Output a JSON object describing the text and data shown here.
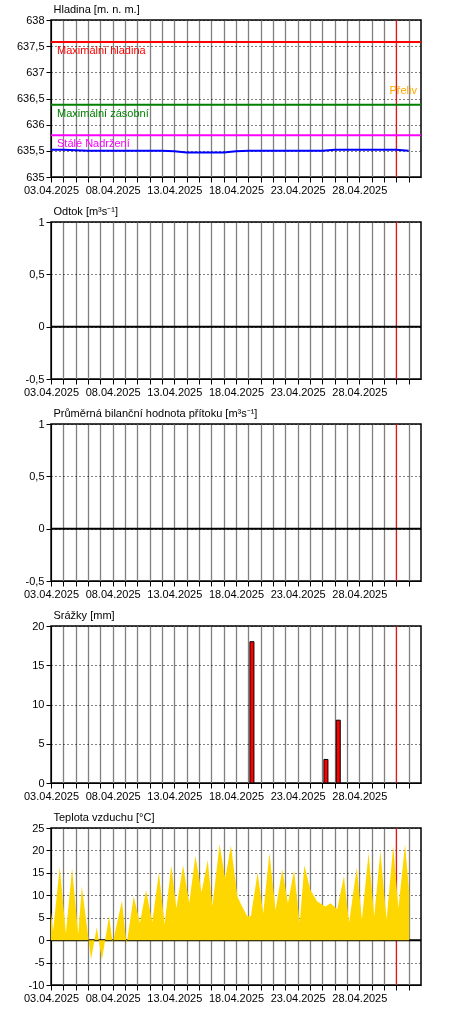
{
  "chart_data": [
    {
      "type": "line",
      "ylabel": "Hladina [m. n. m.]",
      "color": "#0000ff",
      "grid": true,
      "x": [
        "2025-04-03",
        "2025-04-04",
        "2025-04-05",
        "2025-04-06",
        "2025-04-07",
        "2025-04-08",
        "2025-04-09",
        "2025-04-10",
        "2025-04-11",
        "2025-04-12",
        "2025-04-13",
        "2025-04-14",
        "2025-04-15",
        "2025-04-16",
        "2025-04-17",
        "2025-04-18",
        "2025-04-19",
        "2025-04-20",
        "2025-04-21",
        "2025-04-22",
        "2025-04-23",
        "2025-04-24",
        "2025-04-25",
        "2025-04-26",
        "2025-04-27",
        "2025-04-28",
        "2025-04-29",
        "2025-04-30",
        "2025-05-01",
        "2025-05-02"
      ],
      "values": [
        635.52,
        635.52,
        635.51,
        635.5,
        635.5,
        635.5,
        635.5,
        635.5,
        635.5,
        635.5,
        635.49,
        635.47,
        635.47,
        635.47,
        635.47,
        635.49,
        635.5,
        635.5,
        635.5,
        635.5,
        635.5,
        635.5,
        635.5,
        635.52,
        635.52,
        635.52,
        635.52,
        635.52,
        635.52,
        635.5
      ],
      "xlim": [
        "2025-04-03",
        "2025-05-03"
      ],
      "xticks": [
        {
          "value": "2025-04-03",
          "label": "03.04.2025"
        },
        {
          "value": "2025-04-04",
          "label": null
        },
        {
          "value": "2025-04-05",
          "label": null
        },
        {
          "value": "2025-04-06",
          "label": null
        },
        {
          "value": "2025-04-07",
          "label": null
        },
        {
          "value": "2025-04-08",
          "label": "08.04.2025"
        },
        {
          "value": "2025-04-09",
          "label": null
        },
        {
          "value": "2025-04-10",
          "label": null
        },
        {
          "value": "2025-04-11",
          "label": null
        },
        {
          "value": "2025-04-12",
          "label": null
        },
        {
          "value": "2025-04-13",
          "label": "13.04.2025"
        },
        {
          "value": "2025-04-14",
          "label": null
        },
        {
          "value": "2025-04-15",
          "label": null
        },
        {
          "value": "2025-04-16",
          "label": null
        },
        {
          "value": "2025-04-17",
          "label": null
        },
        {
          "value": "2025-04-18",
          "label": "18.04.2025"
        },
        {
          "value": "2025-04-19",
          "label": null
        },
        {
          "value": "2025-04-20",
          "label": null
        },
        {
          "value": "2025-04-21",
          "label": null
        },
        {
          "value": "2025-04-22",
          "label": null
        },
        {
          "value": "2025-04-23",
          "label": "23.04.2025"
        },
        {
          "value": "2025-04-24",
          "label": null
        },
        {
          "value": "2025-04-25",
          "label": null
        },
        {
          "value": "2025-04-26",
          "label": null
        },
        {
          "value": "2025-04-27",
          "label": null
        },
        {
          "value": "2025-04-28",
          "label": "28.04.2025"
        },
        {
          "value": "2025-04-29",
          "label": null
        },
        {
          "value": "2025-04-30",
          "label": null
        },
        {
          "value": "2025-05-01",
          "label": null
        },
        {
          "value": "2025-05-02",
          "label": null
        }
      ],
      "ylim": [
        635,
        638
      ],
      "yticks": [
        635,
        {
          "value": 635.5,
          "label": "635,5"
        },
        636,
        {
          "value": 636.5,
          "label": "636,5"
        },
        637,
        {
          "value": 637.5,
          "label": "637,5"
        },
        638
      ],
      "ref_lines": [
        {
          "axis": "y",
          "value": 637.58,
          "label": "Maximální hladina",
          "color": "#ff0000"
        },
        {
          "axis": "y",
          "value": 636.38,
          "label": "Maximální zásobní",
          "color": "#008000"
        },
        {
          "axis": "y",
          "value": 635.8,
          "label": "Stálé Nadržení",
          "color": "#ff00ff"
        },
        {
          "axis": "x",
          "value": "2025-05-01",
          "color": "#ff0000"
        }
      ],
      "annotations": [
        "Přeliv"
      ]
    },
    {
      "type": "line",
      "ylabel": "Odtok [m³s⁻¹]",
      "grid": true,
      "xlim": [
        "2025-04-03",
        "2025-05-03"
      ],
      "xticks": [
        {
          "value": "2025-04-03",
          "label": "03.04.2025"
        },
        {
          "value": "2025-04-04",
          "label": null
        },
        {
          "value": "2025-04-05",
          "label": null
        },
        {
          "value": "2025-04-06",
          "label": null
        },
        {
          "value": "2025-04-07",
          "label": null
        },
        {
          "value": "2025-04-08",
          "label": "08.04.2025"
        },
        {
          "value": "2025-04-09",
          "label": null
        },
        {
          "value": "2025-04-10",
          "label": null
        },
        {
          "value": "2025-04-11",
          "label": null
        },
        {
          "value": "2025-04-12",
          "label": null
        },
        {
          "value": "2025-04-13",
          "label": "13.04.2025"
        },
        {
          "value": "2025-04-14",
          "label": null
        },
        {
          "value": "2025-04-15",
          "label": null
        },
        {
          "value": "2025-04-16",
          "label": null
        },
        {
          "value": "2025-04-17",
          "label": null
        },
        {
          "value": "2025-04-18",
          "label": "18.04.2025"
        },
        {
          "value": "2025-04-19",
          "label": null
        },
        {
          "value": "2025-04-20",
          "label": null
        },
        {
          "value": "2025-04-21",
          "label": null
        },
        {
          "value": "2025-04-22",
          "label": null
        },
        {
          "value": "2025-04-23",
          "label": "23.04.2025"
        },
        {
          "value": "2025-04-24",
          "label": null
        },
        {
          "value": "2025-04-25",
          "label": null
        },
        {
          "value": "2025-04-26",
          "label": null
        },
        {
          "value": "2025-04-27",
          "label": null
        },
        {
          "value": "2025-04-28",
          "label": "28.04.2025"
        },
        {
          "value": "2025-04-29",
          "label": null
        },
        {
          "value": "2025-04-30",
          "label": null
        },
        {
          "value": "2025-05-01",
          "label": null
        },
        {
          "value": "2025-05-02",
          "label": null
        }
      ],
      "ylim": [
        -0.5,
        1
      ],
      "yticks": [
        {
          "value": -0.5,
          "label": "-0,5"
        },
        0,
        {
          "value": 0.5,
          "label": "0,5"
        },
        1
      ],
      "ref_lines": [
        {
          "axis": "y",
          "value": 0,
          "color": "#000000"
        },
        {
          "axis": "x",
          "value": "2025-05-01",
          "color": "#ff0000"
        }
      ]
    },
    {
      "type": "line",
      "ylabel": "Průměrná bilanční hodnota přítoku   [m³s⁻¹]",
      "grid": true,
      "xlim": [
        "2025-04-03",
        "2025-05-03"
      ],
      "xticks": [
        {
          "value": "2025-04-03",
          "label": "03.04.2025"
        },
        {
          "value": "2025-04-04",
          "label": null
        },
        {
          "value": "2025-04-05",
          "label": null
        },
        {
          "value": "2025-04-06",
          "label": null
        },
        {
          "value": "2025-04-07",
          "label": null
        },
        {
          "value": "2025-04-08",
          "label": "08.04.2025"
        },
        {
          "value": "2025-04-09",
          "label": null
        },
        {
          "value": "2025-04-10",
          "label": null
        },
        {
          "value": "2025-04-11",
          "label": null
        },
        {
          "value": "2025-04-12",
          "label": null
        },
        {
          "value": "2025-04-13",
          "label": "13.04.2025"
        },
        {
          "value": "2025-04-14",
          "label": null
        },
        {
          "value": "2025-04-15",
          "label": null
        },
        {
          "value": "2025-04-16",
          "label": null
        },
        {
          "value": "2025-04-17",
          "label": null
        },
        {
          "value": "2025-04-18",
          "label": "18.04.2025"
        },
        {
          "value": "2025-04-19",
          "label": null
        },
        {
          "value": "2025-04-20",
          "label": null
        },
        {
          "value": "2025-04-21",
          "label": null
        },
        {
          "value": "2025-04-22",
          "label": null
        },
        {
          "value": "2025-04-23",
          "label": "23.04.2025"
        },
        {
          "value": "2025-04-24",
          "label": null
        },
        {
          "value": "2025-04-25",
          "label": null
        },
        {
          "value": "2025-04-26",
          "label": null
        },
        {
          "value": "2025-04-27",
          "label": null
        },
        {
          "value": "2025-04-28",
          "label": "28.04.2025"
        },
        {
          "value": "2025-04-29",
          "label": null
        },
        {
          "value": "2025-04-30",
          "label": null
        },
        {
          "value": "2025-05-01",
          "label": null
        },
        {
          "value": "2025-05-02",
          "label": null
        }
      ],
      "ylim": [
        -0.5,
        1
      ],
      "yticks": [
        {
          "value": -0.5,
          "label": "-0,5"
        },
        0,
        {
          "value": 0.5,
          "label": "0,5"
        },
        1
      ],
      "ref_lines": [
        {
          "axis": "y",
          "value": 0,
          "color": "#000000"
        },
        {
          "axis": "x",
          "value": "2025-05-01",
          "color": "#ff0000"
        }
      ]
    },
    {
      "type": "bar",
      "ylabel": "Srážky [mm]",
      "color": "#ff0000",
      "grid": true,
      "x": [
        "2025-04-19T07:00",
        "2025-04-25T07:00",
        "2025-04-26T07:00"
      ],
      "values": [
        18,
        3,
        8
      ],
      "xlim": [
        "2025-04-03",
        "2025-05-03"
      ],
      "xticks": [
        {
          "value": "2025-04-03",
          "label": "03.04.2025"
        },
        {
          "value": "2025-04-04",
          "label": null
        },
        {
          "value": "2025-04-05",
          "label": null
        },
        {
          "value": "2025-04-06",
          "label": null
        },
        {
          "value": "2025-04-07",
          "label": null
        },
        {
          "value": "2025-04-08",
          "label": "08.04.2025"
        },
        {
          "value": "2025-04-09",
          "label": null
        },
        {
          "value": "2025-04-10",
          "label": null
        },
        {
          "value": "2025-04-11",
          "label": null
        },
        {
          "value": "2025-04-12",
          "label": null
        },
        {
          "value": "2025-04-13",
          "label": "13.04.2025"
        },
        {
          "value": "2025-04-14",
          "label": null
        },
        {
          "value": "2025-04-15",
          "label": null
        },
        {
          "value": "2025-04-16",
          "label": null
        },
        {
          "value": "2025-04-17",
          "label": null
        },
        {
          "value": "2025-04-18",
          "label": "18.04.2025"
        },
        {
          "value": "2025-04-19",
          "label": null
        },
        {
          "value": "2025-04-20",
          "label": null
        },
        {
          "value": "2025-04-21",
          "label": null
        },
        {
          "value": "2025-04-22",
          "label": null
        },
        {
          "value": "2025-04-23",
          "label": "23.04.2025"
        },
        {
          "value": "2025-04-24",
          "label": null
        },
        {
          "value": "2025-04-25",
          "label": null
        },
        {
          "value": "2025-04-26",
          "label": null
        },
        {
          "value": "2025-04-27",
          "label": null
        },
        {
          "value": "2025-04-28",
          "label": "28.04.2025"
        },
        {
          "value": "2025-04-29",
          "label": null
        },
        {
          "value": "2025-04-30",
          "label": null
        },
        {
          "value": "2025-05-01",
          "label": null
        },
        {
          "value": "2025-05-02",
          "label": null
        }
      ],
      "ylim": [
        0,
        20
      ],
      "yticks": [
        0,
        5,
        10,
        15,
        20
      ],
      "ref_lines": [
        {
          "axis": "x",
          "value": "2025-05-01",
          "color": "#ff0000"
        }
      ]
    },
    {
      "type": "area",
      "ylabel": "Teplota vzduchu [°C]",
      "color": "#ffd700",
      "grid": true,
      "x": [
        "2025-04-03T00:00",
        "2025-04-03T04:00",
        "2025-04-03T17:00",
        "2025-04-04T05:00",
        "2025-04-04T17:00",
        "2025-04-05T05:00",
        "2025-04-05T12:00",
        "2025-04-05T22:00",
        "2025-04-06T06:00",
        "2025-04-06T17:00",
        "2025-04-07T03:00",
        "2025-04-07T17:00",
        "2025-04-08T00:00",
        "2025-04-08T18:00",
        "2025-04-09T03:00",
        "2025-04-09T17:00",
        "2025-04-10T05:00",
        "2025-04-10T17:00",
        "2025-04-11T05:00",
        "2025-04-11T18:00",
        "2025-04-12T05:00",
        "2025-04-12T18:00",
        "2025-04-13T04:00",
        "2025-04-13T17:00",
        "2025-04-14T05:00",
        "2025-04-14T17:00",
        "2025-04-15T05:00",
        "2025-04-15T17:00",
        "2025-04-16T02:00",
        "2025-04-16T16:00",
        "2025-04-17T03:00",
        "2025-04-17T14:00",
        "2025-04-18T03:00",
        "2025-04-18T12:00",
        "2025-04-18T22:00",
        "2025-04-19T05:00",
        "2025-04-19T18:00",
        "2025-04-20T05:00",
        "2025-04-20T17:00",
        "2025-04-21T05:00",
        "2025-04-21T18:00",
        "2025-04-22T05:00",
        "2025-04-22T17:00",
        "2025-04-23T04:00",
        "2025-04-23T13:00",
        "2025-04-24T01:00",
        "2025-04-24T14:00",
        "2025-04-25T06:00",
        "2025-04-25T16:00",
        "2025-04-26T05:00",
        "2025-04-26T18:00",
        "2025-04-27T04:00",
        "2025-04-27T19:00",
        "2025-04-28T05:00",
        "2025-04-28T18:00",
        "2025-04-29T05:00",
        "2025-04-29T17:00",
        "2025-04-30T05:00",
        "2025-04-30T18:00",
        "2025-05-01T04:00",
        "2025-05-01T17:00",
        "2025-05-02T01:00"
      ],
      "values": [
        6.2,
        2.0,
        16.3,
        1.5,
        16.0,
        1.3,
        12.0,
        3.0,
        -4.3,
        2.9,
        -4.5,
        5.4,
        -0.7,
        8.8,
        -0.9,
        9.8,
        3.8,
        11.1,
        4.0,
        15.1,
        3.5,
        16.7,
        7.1,
        16.7,
        8.2,
        18.8,
        10.7,
        17.8,
        7.5,
        21.4,
        13.8,
        21.1,
        9.6,
        7.5,
        5.3,
        5.3,
        15.1,
        6.0,
        19.4,
        6.7,
        15.8,
        8.2,
        15.6,
        3.8,
        16.7,
        11.1,
        8.6,
        7.5,
        8.2,
        6.9,
        14.3,
        3.8,
        16.2,
        4.6,
        19.4,
        5.3,
        19.9,
        4.6,
        21.1,
        7.1,
        21.4,
        10.7
      ],
      "xlim": [
        "2025-04-03",
        "2025-05-03"
      ],
      "xticks": [
        {
          "value": "2025-04-03",
          "label": "03.04.2025"
        },
        {
          "value": "2025-04-04",
          "label": null
        },
        {
          "value": "2025-04-05",
          "label": null
        },
        {
          "value": "2025-04-06",
          "label": null
        },
        {
          "value": "2025-04-07",
          "label": null
        },
        {
          "value": "2025-04-08",
          "label": "08.04.2025"
        },
        {
          "value": "2025-04-09",
          "label": null
        },
        {
          "value": "2025-04-10",
          "label": null
        },
        {
          "value": "2025-04-11",
          "label": null
        },
        {
          "value": "2025-04-12",
          "label": null
        },
        {
          "value": "2025-04-13",
          "label": "13.04.2025"
        },
        {
          "value": "2025-04-14",
          "label": null
        },
        {
          "value": "2025-04-15",
          "label": null
        },
        {
          "value": "2025-04-16",
          "label": null
        },
        {
          "value": "2025-04-17",
          "label": null
        },
        {
          "value": "2025-04-18",
          "label": "18.04.2025"
        },
        {
          "value": "2025-04-19",
          "label": null
        },
        {
          "value": "2025-04-20",
          "label": null
        },
        {
          "value": "2025-04-21",
          "label": null
        },
        {
          "value": "2025-04-22",
          "label": null
        },
        {
          "value": "2025-04-23",
          "label": "23.04.2025"
        },
        {
          "value": "2025-04-24",
          "label": null
        },
        {
          "value": "2025-04-25",
          "label": null
        },
        {
          "value": "2025-04-26",
          "label": null
        },
        {
          "value": "2025-04-27",
          "label": null
        },
        {
          "value": "2025-04-28",
          "label": "28.04.2025"
        },
        {
          "value": "2025-04-29",
          "label": null
        },
        {
          "value": "2025-04-30",
          "label": null
        },
        {
          "value": "2025-05-01",
          "label": null
        },
        {
          "value": "2025-05-02",
          "label": null
        }
      ],
      "ylim": [
        -10,
        25
      ],
      "yticks": [
        -10,
        -5,
        0,
        5,
        10,
        15,
        20,
        25
      ],
      "ref_lines": [
        {
          "axis": "y",
          "value": 0,
          "color": "#000000"
        },
        {
          "axis": "x",
          "value": "2025-05-01",
          "color": "#ff0000"
        }
      ]
    }
  ]
}
